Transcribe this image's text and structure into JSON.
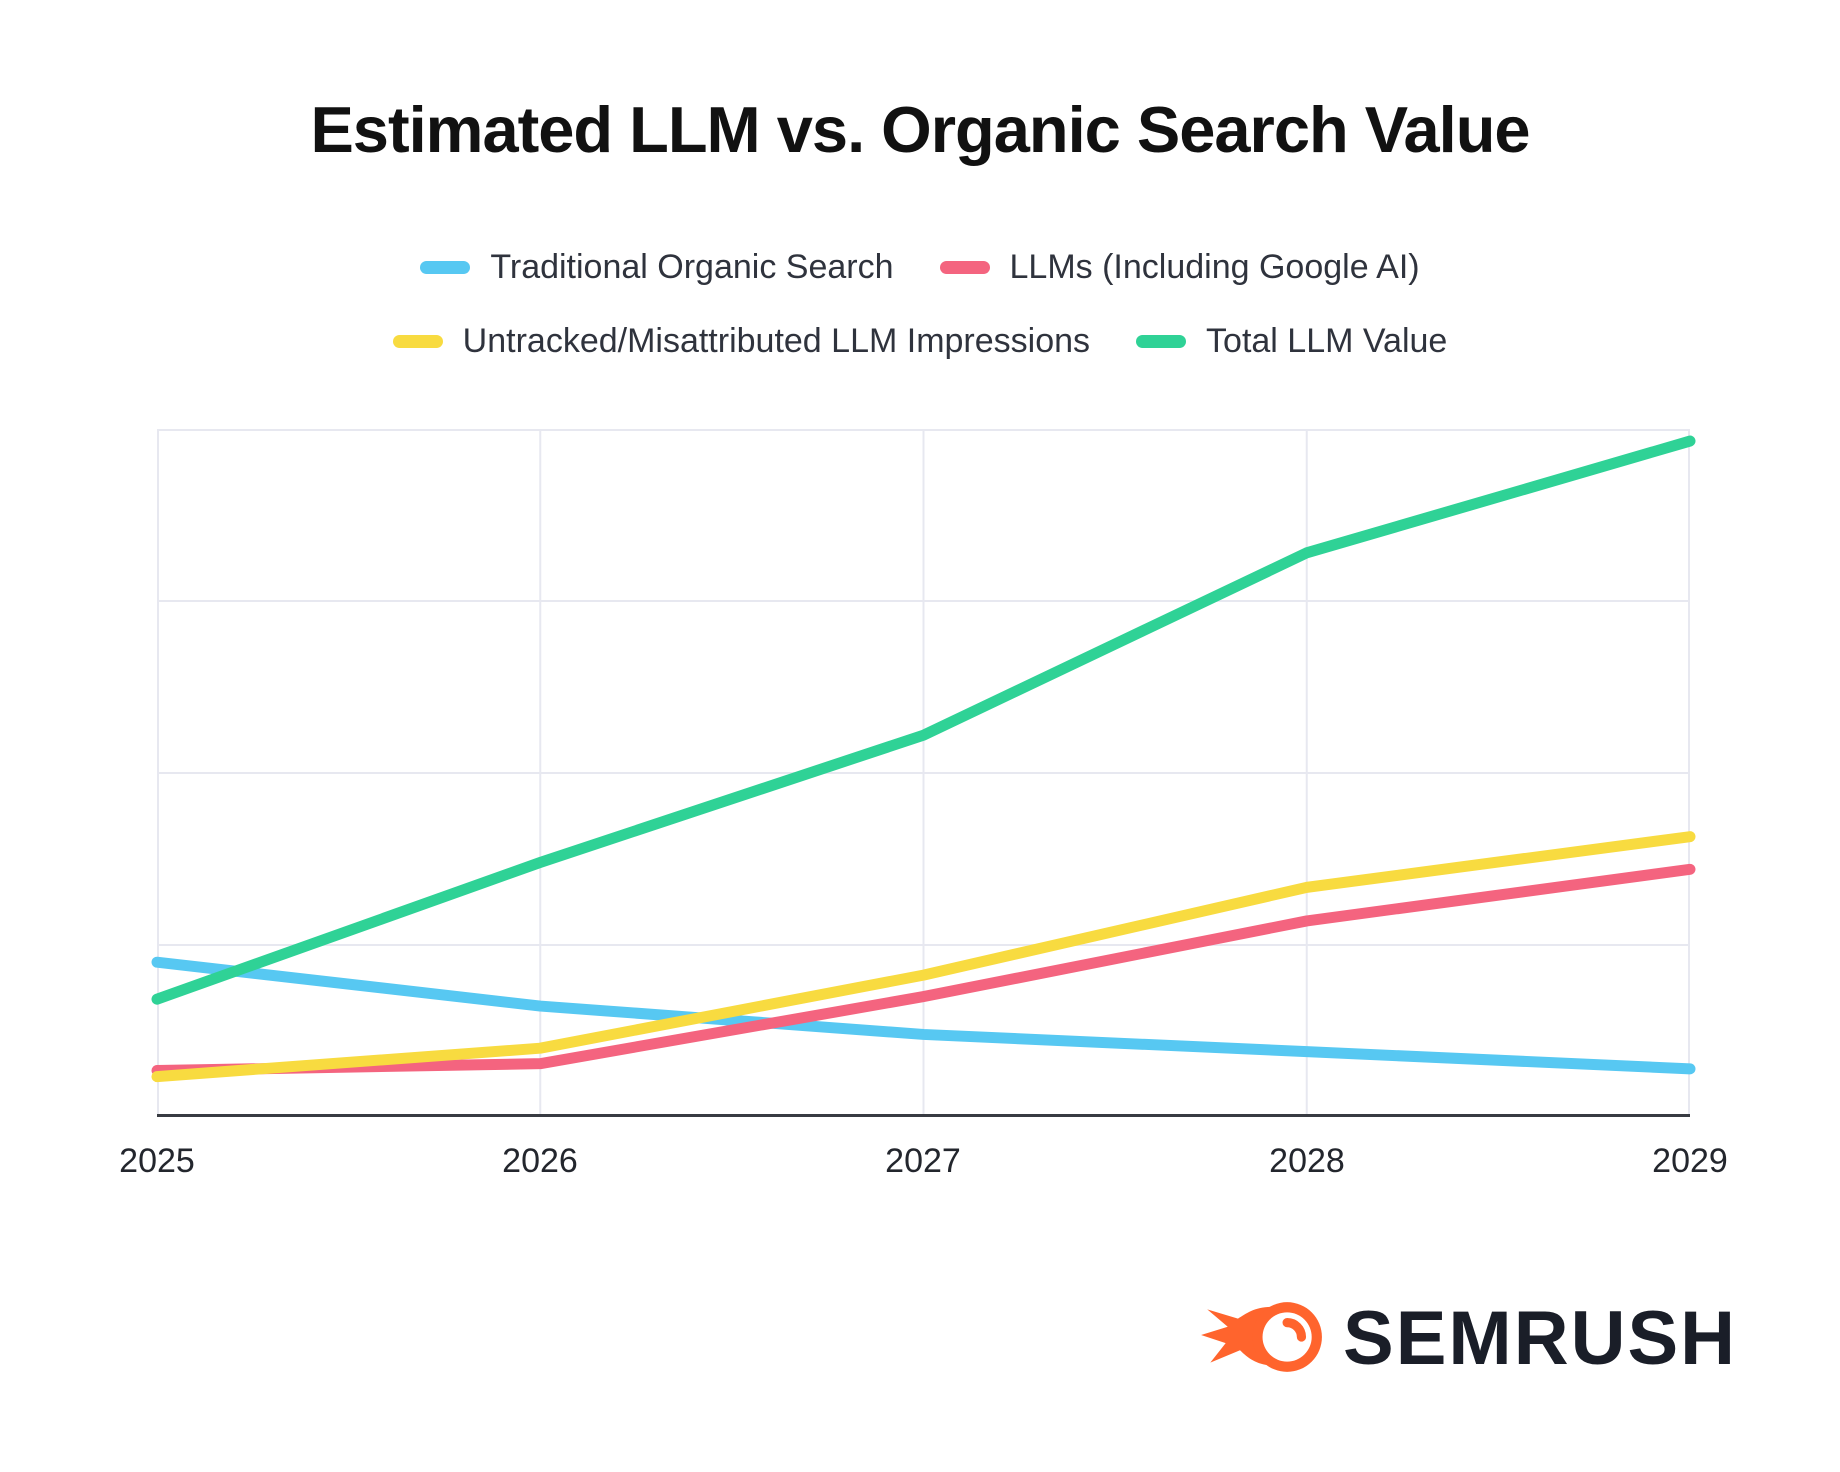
{
  "title": "Estimated LLM vs. Organic Search Value",
  "legend": [
    {
      "label": "Traditional Organic Search",
      "color": "#57C8F2"
    },
    {
      "label": "LLMs (Including Google AI)",
      "color": "#F4647F"
    },
    {
      "label": "Untracked/Misattributed LLM Impressions",
      "color": "#F8DB40"
    },
    {
      "label": "Total LLM Value",
      "color": "#2FD296"
    }
  ],
  "chart_data": {
    "type": "line",
    "title": "Estimated LLM vs. Organic Search Value",
    "x": [
      2025,
      2026,
      2027,
      2028,
      2029
    ],
    "x_tick_labels": [
      "2025",
      "2026",
      "2027",
      "2028",
      "2029"
    ],
    "series": [
      {
        "name": "Traditional Organic Search",
        "color": "#57C8F2",
        "values": [
          0.9,
          0.645,
          0.48,
          0.38,
          0.28
        ]
      },
      {
        "name": "LLMs (Including Google AI)",
        "color": "#F4647F",
        "values": [
          0.27,
          0.31,
          0.7,
          1.14,
          1.44
        ]
      },
      {
        "name": "Untracked/Misattributed LLM Impressions",
        "color": "#F8DB40",
        "values": [
          0.235,
          0.4,
          0.825,
          1.335,
          1.63
        ]
      },
      {
        "name": "Total LLM Value",
        "color": "#2FD296",
        "values": [
          0.685,
          1.48,
          2.22,
          3.28,
          3.93
        ]
      }
    ],
    "xlabel": "",
    "ylabel": "",
    "ylim": [
      0,
      4
    ],
    "y_axis_labels_visible": false,
    "grid": true,
    "legend_position": "top"
  },
  "logo": {
    "text": "SEMRUSH",
    "icon": "semrush-comet-icon",
    "orange": "#FF642D",
    "navy": "#1A1E28"
  },
  "style_colors": {
    "gridline": "#e7e8f0",
    "axis_line": "#383b42",
    "background": "#ffffff"
  }
}
